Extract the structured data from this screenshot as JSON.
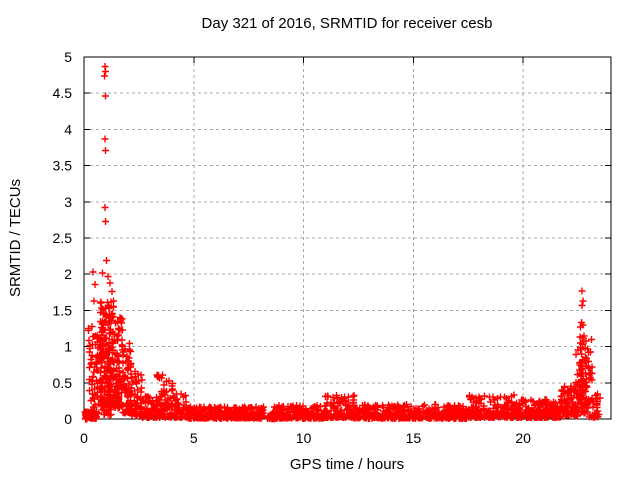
{
  "chart_data": {
    "type": "scatter",
    "title": "Day 321 of 2016, SRMTID for receiver cesb",
    "xlabel": "GPS time / hours",
    "ylabel": "SRMTID / TECUs",
    "xlim": [
      0,
      24
    ],
    "ylim": [
      0,
      5
    ],
    "xticks": [
      0,
      5,
      10,
      15,
      20
    ],
    "yticks": [
      0,
      0.5,
      1,
      1.5,
      2,
      2.5,
      3,
      3.5,
      4,
      4.5,
      5
    ],
    "grid": {
      "show": true,
      "color": "#a8a8a8",
      "dash": "3 3"
    },
    "frame_color": "#000000",
    "marker": {
      "shape": "plus",
      "color": "#ff0000",
      "size": 7,
      "stroke_width": 1.4
    },
    "seed": 1321,
    "outlier_points": [
      [
        0.95,
        4.87
      ],
      [
        0.98,
        4.8
      ],
      [
        0.94,
        4.74
      ],
      [
        0.97,
        4.46
      ],
      [
        0.95,
        3.87
      ],
      [
        0.97,
        3.71
      ],
      [
        0.95,
        2.92
      ],
      [
        0.98,
        2.73
      ],
      [
        1.02,
        2.19
      ],
      [
        0.42,
        2.03
      ],
      [
        0.85,
        2.02
      ],
      [
        1.1,
        1.97
      ],
      [
        0.5,
        1.86
      ],
      [
        1.18,
        1.88
      ],
      [
        1.28,
        1.76
      ],
      [
        1.35,
        1.63
      ],
      [
        22.68,
        1.77
      ],
      [
        22.72,
        1.63
      ],
      [
        22.69,
        1.57
      ],
      [
        22.66,
        1.33
      ],
      [
        22.72,
        1.3
      ],
      [
        22.62,
        1.27
      ],
      [
        22.58,
        1.13
      ],
      [
        22.7,
        1.12
      ],
      [
        22.78,
        1.08
      ],
      [
        22.6,
        1.05
      ],
      [
        22.82,
        0.98
      ],
      [
        22.5,
        0.95
      ],
      [
        23.5,
        0.29
      ]
    ],
    "clusters": [
      {
        "x0": 0.05,
        "x1": 0.6,
        "n": 90,
        "y0": 0.0,
        "y1": 0.1,
        "bias": 1.0
      },
      {
        "x0": 0.2,
        "x1": 0.5,
        "n": 30,
        "y0": 0.1,
        "y1": 1.65,
        "bias": 1.1
      },
      {
        "x0": 0.45,
        "x1": 0.8,
        "n": 45,
        "y0": 0.08,
        "y1": 1.2,
        "bias": 1.4
      },
      {
        "x0": 0.75,
        "x1": 1.35,
        "n": 150,
        "y0": 0.25,
        "y1": 1.62,
        "bias": 1.15
      },
      {
        "x0": 0.8,
        "x1": 1.3,
        "n": 40,
        "y0": 0.05,
        "y1": 0.3,
        "bias": 1.2
      },
      {
        "x0": 1.35,
        "x1": 1.75,
        "n": 90,
        "y0": 0.15,
        "y1": 1.45,
        "bias": 1.5
      },
      {
        "x0": 1.75,
        "x1": 2.15,
        "n": 70,
        "y0": 0.08,
        "y1": 1.05,
        "bias": 1.9
      },
      {
        "x0": 2.15,
        "x1": 2.65,
        "n": 55,
        "y0": 0.04,
        "y1": 0.7,
        "bias": 1.9
      },
      {
        "x0": 2.65,
        "x1": 3.25,
        "n": 60,
        "y0": 0.02,
        "y1": 0.32,
        "bias": 1.8
      },
      {
        "x0": 3.25,
        "x1": 4.05,
        "n": 80,
        "y0": 0.02,
        "y1": 0.62,
        "bias": 1.7
      },
      {
        "x0": 4.05,
        "x1": 4.7,
        "n": 55,
        "y0": 0.02,
        "y1": 0.35,
        "bias": 2.0
      },
      {
        "x0": 4.7,
        "x1": 8.2,
        "n": 300,
        "y0": 0.01,
        "y1": 0.17,
        "bias": 2.0
      },
      {
        "x0": 8.35,
        "x1": 8.75,
        "n": 40,
        "y0": 0.0,
        "y1": 0.06,
        "bias": 1.0
      },
      {
        "x0": 8.55,
        "x1": 11.0,
        "n": 210,
        "y0": 0.01,
        "y1": 0.19,
        "bias": 2.0
      },
      {
        "x0": 11.0,
        "x1": 12.3,
        "n": 120,
        "y0": 0.02,
        "y1": 0.33,
        "bias": 2.1
      },
      {
        "x0": 12.3,
        "x1": 17.5,
        "n": 440,
        "y0": 0.01,
        "y1": 0.2,
        "bias": 2.1
      },
      {
        "x0": 17.5,
        "x1": 19.6,
        "n": 180,
        "y0": 0.02,
        "y1": 0.33,
        "bias": 2.0
      },
      {
        "x0": 19.6,
        "x1": 21.7,
        "n": 180,
        "y0": 0.02,
        "y1": 0.27,
        "bias": 2.0
      },
      {
        "x0": 21.7,
        "x1": 22.5,
        "n": 90,
        "y0": 0.04,
        "y1": 0.45,
        "bias": 1.6
      },
      {
        "x0": 22.4,
        "x1": 22.9,
        "n": 70,
        "y0": 0.08,
        "y1": 0.9,
        "bias": 1.2
      },
      {
        "x0": 22.6,
        "x1": 23.2,
        "n": 45,
        "y0": 0.15,
        "y1": 1.15,
        "bias": 1.1
      },
      {
        "x0": 23.0,
        "x1": 23.45,
        "n": 25,
        "y0": 0.02,
        "y1": 0.35,
        "bias": 1.5
      }
    ]
  }
}
